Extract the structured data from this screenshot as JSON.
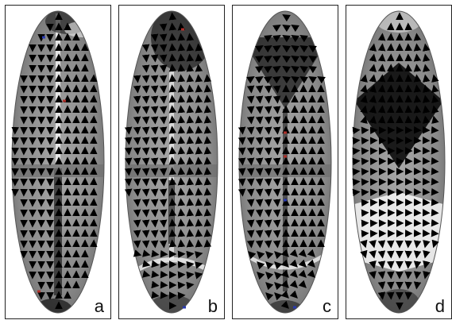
{
  "panels": [
    {
      "id": "a",
      "label": "a",
      "pattern": "a"
    },
    {
      "id": "b",
      "label": "b",
      "pattern": "b"
    },
    {
      "id": "c",
      "label": "c",
      "pattern": "c"
    },
    {
      "id": "d",
      "label": "d",
      "pattern": "d"
    }
  ],
  "colors": {
    "arrow": "#000000",
    "ellipse_gray": "#8c8c8c",
    "light": "#f2f2f2",
    "dark": "#111111",
    "red_marker": "#b0302a",
    "blue_marker": "#2a3ab0"
  }
}
